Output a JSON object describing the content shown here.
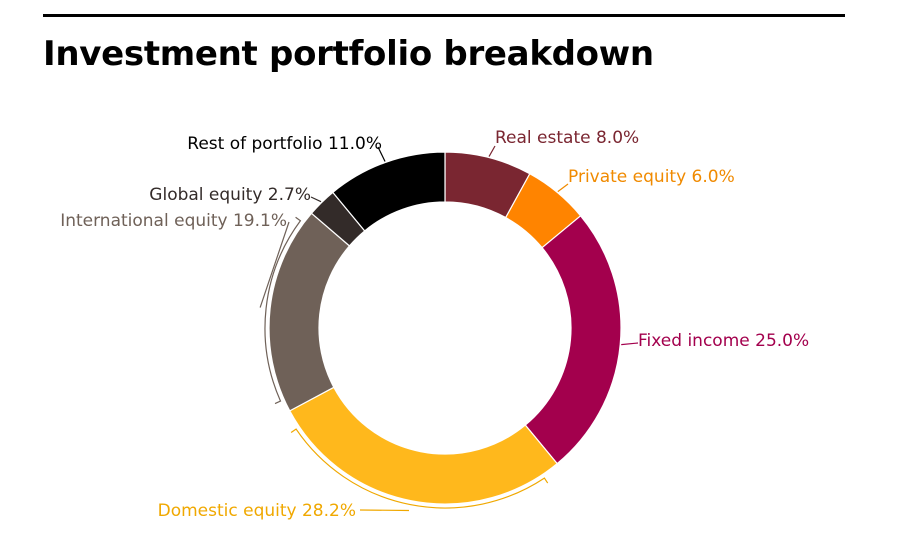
{
  "page": {
    "title": "Investment portfolio breakdown"
  },
  "chart_data": {
    "type": "pie",
    "donut": true,
    "title": "Investment portfolio breakdown",
    "legend": "none",
    "slices": [
      {
        "label": "Real estate 8.0%",
        "name": "Real estate",
        "value": 8.0,
        "color": "#7a2631",
        "label_color": "#7a2631"
      },
      {
        "label": "Private equity 6.0%",
        "name": "Private equity",
        "value": 6.0,
        "color": "#ff8400",
        "label_color": "#f08a00"
      },
      {
        "label": "Fixed income 25.0%",
        "name": "Fixed income",
        "value": 25.0,
        "color": "#a3004d",
        "label_color": "#a3004d"
      },
      {
        "label": "Domestic equity 28.2%",
        "name": "Domestic equity",
        "value": 28.2,
        "color": "#ffb81c",
        "label_color": "#f0a800"
      },
      {
        "label": "International equity 19.1%",
        "name": "International equity",
        "value": 19.1,
        "color": "#6f6158",
        "label_color": "#6f6158"
      },
      {
        "label": "Global equity 2.7%",
        "name": "Global equity",
        "value": 2.7,
        "color": "#332b29",
        "label_color": "#332b29"
      },
      {
        "label": "Rest of portfolio 11.0%",
        "name": "Rest of portfolio",
        "value": 11.0,
        "color": "#000000",
        "label_color": "#000000"
      }
    ]
  }
}
